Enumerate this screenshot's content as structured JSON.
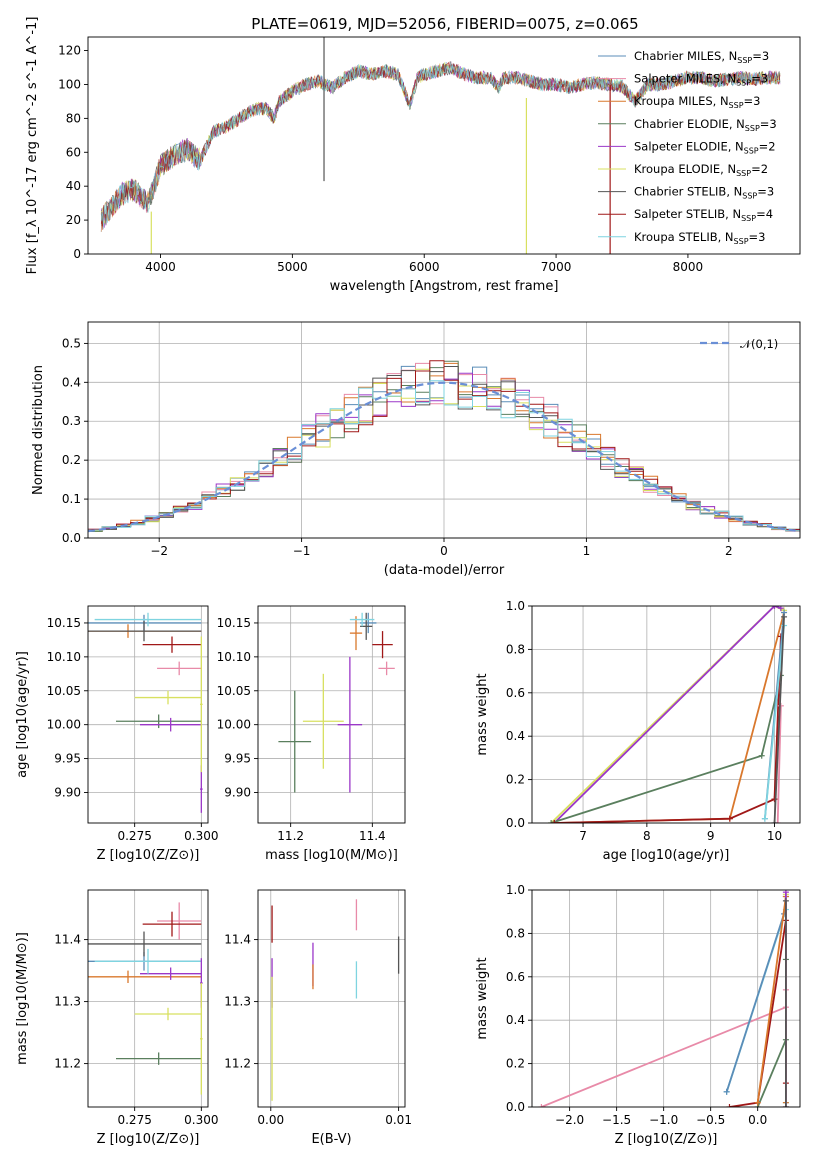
{
  "figure": {
    "title": "PLATE=0619, MJD=52056, FIBERID=0075, z=0.065"
  },
  "colors": {
    "Chabrier MILES": "#5b8db8",
    "Salpeter MILES": "#e88aa8",
    "Kroupa MILES": "#d9782d",
    "Chabrier ELODIE": "#5a7f5e",
    "Salpeter ELODIE": "#9b38c8",
    "Kroupa ELODIE": "#d8e060",
    "Chabrier STELIB": "#555555",
    "Salpeter STELIB": "#a01818",
    "Kroupa STELIB": "#7fd4e0"
  },
  "chart_data": [
    {
      "id": "spectrum",
      "type": "line",
      "title": "PLATE=0619, MJD=52056, FIBERID=0075, z=0.065",
      "xlabel": "wavelength [Angstrom, rest frame]",
      "ylabel": "Flux [f_λ 10^-17 erg cm^-2 s^-1 A^-1]",
      "xlim": [
        3450,
        8850
      ],
      "ylim": [
        0,
        128
      ],
      "xticks": [
        4000,
        5000,
        6000,
        7000,
        8000
      ],
      "yticks": [
        0,
        20,
        40,
        60,
        80,
        100,
        120
      ],
      "grid": false,
      "legend_position": "top-right",
      "legend": [
        "Chabrier MILES, N_SSP=3",
        "Salpeter MILES, N_SSP=3",
        "Kroupa MILES, N_SSP=3",
        "Chabrier ELODIE, N_SSP=3",
        "Salpeter ELODIE, N_SSP=2",
        "Kroupa ELODIE, N_SSP=2",
        "Chabrier STELIB, N_SSP=3",
        "Salpeter STELIB, N_SSP=4",
        "Kroupa STELIB, N_SSP=3"
      ],
      "continuum": {
        "x": [
          3550,
          3650,
          3700,
          3800,
          3900,
          3950,
          4000,
          4100,
          4200,
          4300,
          4400,
          4500,
          4600,
          4700,
          4800,
          4860,
          4900,
          5000,
          5100,
          5200,
          5300,
          5400,
          5500,
          5600,
          5700,
          5800,
          5890,
          5950,
          6000,
          6100,
          6200,
          6300,
          6400,
          6500,
          6563,
          6600,
          6700,
          6800,
          6900,
          7000,
          7100,
          7200,
          7300,
          7400,
          7500,
          7600,
          7700,
          7800,
          7900,
          8000,
          8100,
          8200,
          8300,
          8400,
          8500,
          8600,
          8700
        ],
        "y": [
          20,
          30,
          35,
          38,
          30,
          40,
          52,
          58,
          62,
          55,
          72,
          75,
          80,
          85,
          86,
          80,
          90,
          96,
          100,
          102,
          98,
          104,
          108,
          106,
          108,
          106,
          88,
          104,
          106,
          108,
          110,
          106,
          104,
          104,
          98,
          104,
          104,
          102,
          100,
          100,
          98,
          100,
          101,
          100,
          99,
          90,
          100,
          100,
          102,
          104,
          104,
          102,
          103,
          104,
          103,
          104,
          104
        ]
      },
      "spikes": [
        {
          "x": 3930,
          "y_low": 0,
          "y_high": 25
        },
        {
          "x": 5240,
          "y_low": 43,
          "y_high": 128
        },
        {
          "x": 6775,
          "y_low": 0,
          "y_high": 92
        },
        {
          "x": 7410,
          "y_low": 0,
          "y_high": 100
        }
      ]
    },
    {
      "id": "residuals",
      "type": "line",
      "xlabel": "(data-model)/error",
      "ylabel": "Normed distribution",
      "xlim": [
        -2.5,
        2.5
      ],
      "ylim": [
        0,
        0.555
      ],
      "xticks": [
        -2,
        -1,
        0,
        1,
        2
      ],
      "yticks": [
        0.0,
        0.1,
        0.2,
        0.3,
        0.4,
        0.5
      ],
      "grid": true,
      "legend_position": "top-right",
      "legend": [
        "𝒩(0,1)"
      ],
      "gaussian": {
        "mean": 0,
        "sigma": 1,
        "style": "dashed",
        "color": "#6a8fd6"
      },
      "histogram_bin_width": 0.1
    },
    {
      "id": "age_vs_Z",
      "type": "scatter",
      "xlabel": "Z [log10(Z/Z⊙)]",
      "ylabel": "age  [log10(age/yr)]",
      "xlim": [
        0.2575,
        0.3025
      ],
      "ylim": [
        9.855,
        10.175
      ],
      "xticks": [
        0.275,
        0.3
      ],
      "xticklabels": [
        "0.275",
        "0.300"
      ],
      "yticks": [
        9.9,
        9.95,
        10.0,
        10.05,
        10.1,
        10.15
      ],
      "grid": true,
      "points": [
        {
          "model": "Chabrier MILES",
          "x": 0.2785,
          "xerr": 0.0215,
          "y": 10.15,
          "yerr": 0.012
        },
        {
          "model": "Salpeter MILES",
          "x": 0.2917,
          "xerr": 0.0083,
          "y": 10.083,
          "yerr": 0.01
        },
        {
          "model": "Kroupa MILES",
          "x": 0.2725,
          "xerr": 0.0275,
          "y": 10.138,
          "yerr": 0.01
        },
        {
          "model": "Chabrier ELODIE",
          "x": 0.284,
          "xerr": 0.016,
          "y": 10.005,
          "yerr": 0.01
        },
        {
          "model": "Salpeter ELODIE",
          "x": 0.2885,
          "xerr": 0.0115,
          "y": 10.0,
          "yerr": 0.01
        },
        {
          "model": "Kroupa ELODIE",
          "x": 0.2875,
          "xerr": 0.0125,
          "y": 10.04,
          "yerr": 0.01
        },
        {
          "model": "Chabrier STELIB",
          "x": 0.2785,
          "xerr": 0.0215,
          "y": 10.138,
          "yerr": 0.015
        },
        {
          "model": "Salpeter STELIB",
          "x": 0.289,
          "xerr": 0.011,
          "y": 10.118,
          "yerr": 0.012
        },
        {
          "model": "Kroupa STELIB",
          "x": 0.28,
          "xerr": 0.02,
          "y": 10.155,
          "yerr": 0.01
        },
        {
          "model": "Salpeter ELODIE",
          "x": 0.3,
          "xerr": 0.0005,
          "y": 9.905,
          "yerr": 0.035
        },
        {
          "model": "Kroupa ELODIE",
          "x": 0.3,
          "xerr": 0.0005,
          "y": 10.03,
          "yerr": 0.1
        }
      ]
    },
    {
      "id": "age_vs_mass",
      "type": "scatter",
      "xlabel": "mass [log10(M/M⊙)]",
      "ylabel": "",
      "xlim": [
        11.12,
        11.48
      ],
      "ylim": [
        9.855,
        10.175
      ],
      "xticks": [
        11.2,
        11.4
      ],
      "yticks": [
        9.9,
        9.95,
        10.0,
        10.05,
        10.1,
        10.15
      ],
      "grid": true,
      "points": [
        {
          "model": "Chabrier MILES",
          "x": 11.39,
          "xerr": 0.02,
          "y": 10.15,
          "yerr": 0.015
        },
        {
          "model": "Salpeter MILES",
          "x": 11.435,
          "xerr": 0.02,
          "y": 10.083,
          "yerr": 0.01
        },
        {
          "model": "Kroupa MILES",
          "x": 11.36,
          "xerr": 0.015,
          "y": 10.135,
          "yerr": 0.025
        },
        {
          "model": "Chabrier ELODIE",
          "x": 11.21,
          "xerr": 0.04,
          "y": 9.975,
          "yerr": 0.075
        },
        {
          "model": "Salpeter ELODIE",
          "x": 11.345,
          "xerr": 0.03,
          "y": 10.0,
          "yerr": 0.1
        },
        {
          "model": "Kroupa ELODIE",
          "x": 11.28,
          "xerr": 0.05,
          "y": 10.005,
          "yerr": 0.07
        },
        {
          "model": "Chabrier STELIB",
          "x": 11.385,
          "xerr": 0.015,
          "y": 10.145,
          "yerr": 0.02
        },
        {
          "model": "Salpeter STELIB",
          "x": 11.425,
          "xerr": 0.025,
          "y": 10.118,
          "yerr": 0.02
        },
        {
          "model": "Kroupa STELIB",
          "x": 11.375,
          "xerr": 0.03,
          "y": 10.155,
          "yerr": 0.01
        }
      ]
    },
    {
      "id": "weight_vs_age",
      "type": "line",
      "xlabel": "age  [log10(age/yr)]",
      "ylabel": "mass weight",
      "xlim": [
        6.2,
        10.4
      ],
      "ylim": [
        0.0,
        1.0
      ],
      "xticks": [
        7,
        8,
        9,
        10
      ],
      "yticks": [
        0.0,
        0.2,
        0.4,
        0.6,
        0.8,
        1.0
      ],
      "grid": true,
      "series": [
        {
          "model": "Kroupa ELODIE",
          "x": [
            6.5,
            10.0,
            10.15
          ],
          "y": [
            0.0,
            1.0,
            0.98
          ]
        },
        {
          "model": "Salpeter ELODIE",
          "x": [
            6.55,
            10.0,
            10.1
          ],
          "y": [
            0.0,
            1.0,
            0.99
          ]
        },
        {
          "model": "Chabrier ELODIE",
          "x": [
            6.5,
            9.8,
            10.1
          ],
          "y": [
            0.0,
            0.31,
            0.68
          ]
        },
        {
          "model": "Kroupa MILES",
          "x": [
            6.55,
            9.3,
            10.15
          ],
          "y": [
            0.0,
            0.02,
            0.97
          ]
        },
        {
          "model": "Salpeter STELIB",
          "x": [
            6.55,
            9.3,
            10.0,
            10.1
          ],
          "y": [
            0.0,
            0.02,
            0.11,
            0.86
          ]
        },
        {
          "model": "Chabrier MILES",
          "x": [
            9.85,
            10.15
          ],
          "y": [
            0.02,
            0.97
          ]
        },
        {
          "model": "Kroupa STELIB",
          "x": [
            9.85,
            10.15
          ],
          "y": [
            0.02,
            0.91
          ]
        },
        {
          "model": "Salpeter MILES",
          "x": [
            10.05,
            10.1
          ],
          "y": [
            0.0,
            0.54
          ]
        },
        {
          "model": "Chabrier STELIB",
          "x": [
            10.0,
            10.15
          ],
          "y": [
            0.0,
            0.95
          ]
        }
      ]
    },
    {
      "id": "mass_vs_Z",
      "type": "scatter",
      "xlabel": "Z [log10(Z/Z⊙)]",
      "ylabel": "mass [log10(M/M⊙)]",
      "xlim": [
        0.2575,
        0.3025
      ],
      "ylim": [
        11.13,
        11.48
      ],
      "xticks": [
        0.275,
        0.3
      ],
      "xticklabels": [
        "0.275",
        "0.300"
      ],
      "yticks": [
        11.2,
        11.3,
        11.4
      ],
      "grid": true,
      "points": [
        {
          "model": "Chabrier MILES",
          "x": 0.2785,
          "xerr": 0.0215,
          "y": 11.365,
          "yerr": 0.015
        },
        {
          "model": "Salpeter MILES",
          "x": 0.2917,
          "xerr": 0.0083,
          "y": 11.43,
          "yerr": 0.03
        },
        {
          "model": "Kroupa MILES",
          "x": 0.2725,
          "xerr": 0.0275,
          "y": 11.34,
          "yerr": 0.01
        },
        {
          "model": "Chabrier ELODIE",
          "x": 0.284,
          "xerr": 0.016,
          "y": 11.208,
          "yerr": 0.01
        },
        {
          "model": "Salpeter ELODIE",
          "x": 0.2885,
          "xerr": 0.0115,
          "y": 11.345,
          "yerr": 0.01
        },
        {
          "model": "Kroupa ELODIE",
          "x": 0.2875,
          "xerr": 0.0125,
          "y": 11.28,
          "yerr": 0.01
        },
        {
          "model": "Chabrier STELIB",
          "x": 0.2785,
          "xerr": 0.0215,
          "y": 11.393,
          "yerr": 0.02
        },
        {
          "model": "Salpeter STELIB",
          "x": 0.289,
          "xerr": 0.011,
          "y": 11.425,
          "yerr": 0.02
        },
        {
          "model": "Kroupa STELIB",
          "x": 0.28,
          "xerr": 0.02,
          "y": 11.365,
          "yerr": 0.02
        },
        {
          "model": "Salpeter ELODIE",
          "x": 0.3,
          "xerr": 0.0005,
          "y": 11.33,
          "yerr": 0.04
        },
        {
          "model": "Kroupa ELODIE",
          "x": 0.3,
          "xerr": 0.0005,
          "y": 11.24,
          "yerr": 0.09
        }
      ]
    },
    {
      "id": "mass_vs_ebv",
      "type": "scatter",
      "xlabel": "E(B-V)",
      "ylabel": "",
      "xlim": [
        -0.001,
        0.0105
      ],
      "ylim": [
        11.13,
        11.48
      ],
      "xticks": [
        0.0,
        0.01
      ],
      "xticklabels": [
        "0.00",
        "0.01"
      ],
      "yticks": [
        11.2,
        11.3,
        11.4
      ],
      "grid": true,
      "points": [
        {
          "model": "Salpeter ELODIE",
          "x": 0.0001,
          "xerr": 0,
          "y": 11.33,
          "yerr": 0.04
        },
        {
          "model": "Kroupa ELODIE",
          "x": 0.0001,
          "xerr": 0,
          "y": 11.24,
          "yerr": 0.1
        },
        {
          "model": "Salpeter STELIB",
          "x": 0.0001,
          "xerr": 0,
          "y": 11.425,
          "yerr": 0.03
        },
        {
          "model": "Salpeter ELODIE",
          "x": 0.0033,
          "xerr": 0,
          "y": 11.36,
          "yerr": 0.035
        },
        {
          "model": "Kroupa MILES",
          "x": 0.0033,
          "xerr": 0,
          "y": 11.34,
          "yerr": 0.02
        },
        {
          "model": "Salpeter MILES",
          "x": 0.0067,
          "xerr": 0,
          "y": 11.44,
          "yerr": 0.025
        },
        {
          "model": "Kroupa STELIB",
          "x": 0.0067,
          "xerr": 0,
          "y": 11.335,
          "yerr": 0.03
        },
        {
          "model": "Chabrier STELIB",
          "x": 0.01,
          "xerr": 0,
          "y": 11.375,
          "yerr": 0.03
        }
      ]
    },
    {
      "id": "weight_vs_Z",
      "type": "line",
      "xlabel": "Z [log10(Z/Z⊙)]",
      "ylabel": "mass weight",
      "xlim": [
        -2.4,
        0.45
      ],
      "ylim": [
        0.0,
        1.0
      ],
      "xticks": [
        -2.0,
        -1.5,
        -1.0,
        -0.5,
        0.0
      ],
      "yticks": [
        0.0,
        0.2,
        0.4,
        0.6,
        0.8,
        1.0
      ],
      "grid": true,
      "series": [
        {
          "model": "Salpeter MILES",
          "x": [
            -2.3,
            0.3,
            0.3
          ],
          "y": [
            0.0,
            0.46,
            0.54
          ]
        },
        {
          "model": "Kroupa STELIB",
          "x": [
            -0.33,
            0.3,
            0.3
          ],
          "y": [
            0.07,
            0.91,
            0.02
          ]
        },
        {
          "model": "Chabrier MILES",
          "x": [
            -0.33,
            0.28,
            0.3
          ],
          "y": [
            0.07,
            0.89,
            0.97
          ]
        },
        {
          "model": "Salpeter STELIB",
          "x": [
            -0.3,
            0.0,
            0.3,
            0.3
          ],
          "y": [
            0.0,
            0.02,
            0.86,
            0.11
          ]
        },
        {
          "model": "Chabrier ELODIE",
          "x": [
            0.0,
            0.3,
            0.3
          ],
          "y": [
            0.0,
            0.31,
            0.68
          ]
        },
        {
          "model": "Kroupa MILES",
          "x": [
            0.0,
            0.3,
            0.3
          ],
          "y": [
            0.02,
            0.97,
            0.02
          ]
        },
        {
          "model": "Kroupa ELODIE",
          "x": [
            0.3,
            0.3
          ],
          "y": [
            0.0,
            0.98
          ]
        },
        {
          "model": "Salpeter ELODIE",
          "x": [
            0.3,
            0.3
          ],
          "y": [
            0.0,
            0.99
          ]
        },
        {
          "model": "Chabrier STELIB",
          "x": [
            0.3,
            0.3
          ],
          "y": [
            0.0,
            0.95
          ]
        }
      ]
    }
  ]
}
